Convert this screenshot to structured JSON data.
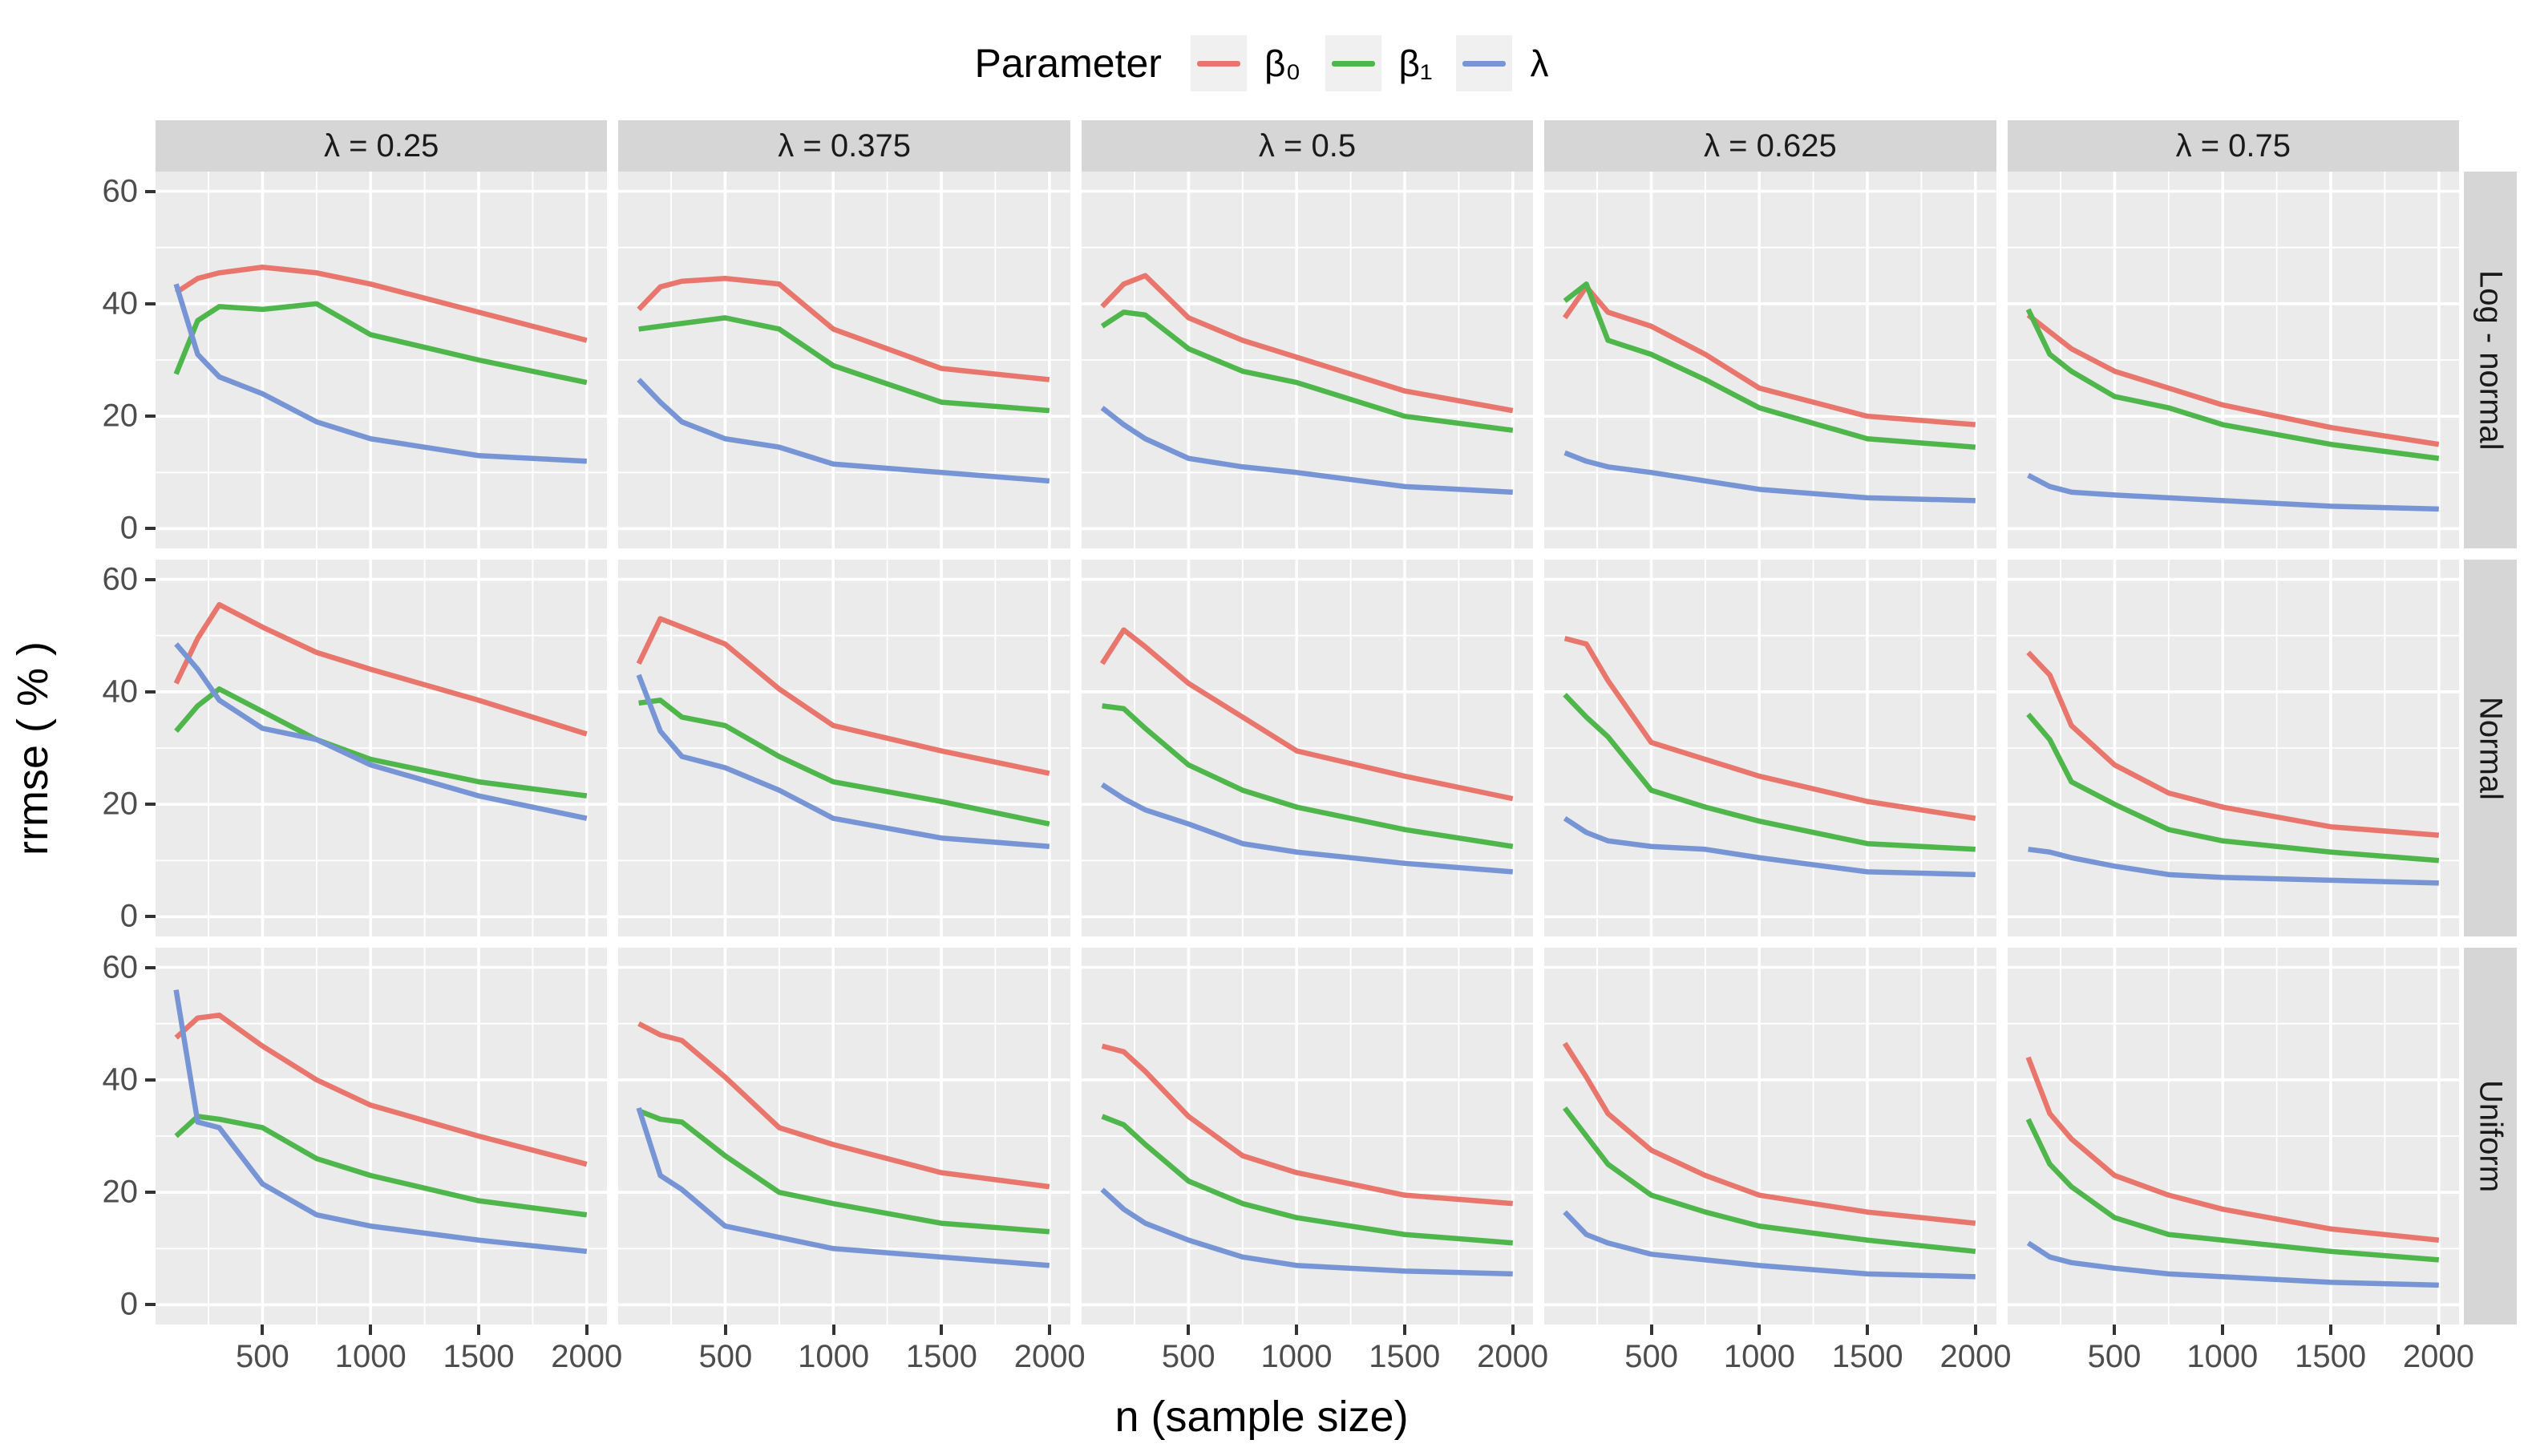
{
  "legend": {
    "title": "Parameter"
  },
  "axes": {
    "x_title": "n (sample size)",
    "y_title": "rrmse ( % )",
    "x_ticks": [
      500,
      1000,
      1500,
      2000
    ],
    "y_ticks": [
      60,
      40,
      20,
      0
    ]
  },
  "facets": {
    "col_labels": [
      "λ = 0.25",
      "λ = 0.375",
      "λ = 0.5",
      "λ = 0.625",
      "λ = 0.75"
    ],
    "row_labels": [
      "Log - normal",
      "Normal",
      "Uniform"
    ]
  },
  "chart_data": {
    "type": "line",
    "x": [
      100,
      200,
      300,
      500,
      750,
      1000,
      1500,
      2000
    ],
    "x_domain": [
      5,
      2095
    ],
    "y_domain": [
      -3.5,
      63.5
    ],
    "x_major_gridlines": [
      500,
      1000,
      1500,
      2000
    ],
    "x_minor_gridlines": [
      250,
      750,
      1250,
      1750
    ],
    "y_major_gridlines": [
      0,
      20,
      40,
      60
    ],
    "y_minor_gridlines": [
      10,
      30,
      50
    ],
    "series": [
      {
        "id": "beta0",
        "label": "β₀",
        "color": "#E8766D"
      },
      {
        "id": "beta1",
        "label": "β₁",
        "color": "#4FB64C"
      },
      {
        "id": "lambda",
        "label": "λ",
        "color": "#7795D5"
      }
    ],
    "rows": [
      {
        "row_label": "Log - normal",
        "panels": [
          {
            "col_label": "λ = 0.25",
            "beta0": [
              42,
              44.5,
              45.5,
              46.5,
              45.5,
              43.5,
              38.5,
              33.5
            ],
            "beta1": [
              27.5,
              37,
              39.5,
              39,
              40,
              34.5,
              30,
              26
            ],
            "lambda": [
              43.5,
              31,
              27,
              24,
              19,
              16,
              13,
              12
            ]
          },
          {
            "col_label": "λ = 0.375",
            "beta0": [
              39,
              43,
              44,
              44.5,
              43.5,
              35.5,
              28.5,
              26.5
            ],
            "beta1": [
              35.5,
              36,
              36.5,
              37.5,
              35.5,
              29,
              22.5,
              21
            ],
            "lambda": [
              26.5,
              22.5,
              19,
              16,
              14.5,
              11.5,
              10,
              8.5
            ]
          },
          {
            "col_label": "λ = 0.5",
            "beta0": [
              39.5,
              43.5,
              45,
              37.5,
              33.5,
              30.5,
              24.5,
              21
            ],
            "beta1": [
              36,
              38.5,
              38,
              32,
              28,
              26,
              20,
              17.5
            ],
            "lambda": [
              21.5,
              18.5,
              16,
              12.5,
              11,
              10,
              7.5,
              6.5
            ]
          },
          {
            "col_label": "λ = 0.625",
            "beta0": [
              37.5,
              43,
              38.5,
              36,
              31,
              25,
              20,
              18.5
            ],
            "beta1": [
              40.5,
              43.5,
              33.5,
              31,
              26.5,
              21.5,
              16,
              14.5
            ],
            "lambda": [
              13.5,
              12,
              11,
              10,
              8.5,
              7,
              5.5,
              5
            ]
          },
          {
            "col_label": "λ = 0.75",
            "beta0": [
              38,
              35,
              32,
              28,
              25,
              22,
              18,
              15
            ],
            "beta1": [
              39,
              31,
              28,
              23.5,
              21.5,
              18.5,
              15,
              12.5
            ],
            "lambda": [
              9.5,
              7.5,
              6.5,
              6,
              5.5,
              5,
              4,
              3.5
            ]
          }
        ]
      },
      {
        "row_label": "Normal",
        "panels": [
          {
            "col_label": "λ = 0.25",
            "beta0": [
              41.5,
              49.5,
              55.5,
              51.5,
              47,
              44,
              38.5,
              32.5
            ],
            "beta1": [
              33,
              37.5,
              40.5,
              36.5,
              31.5,
              28,
              24,
              21.5
            ],
            "lambda": [
              48.5,
              44,
              38.5,
              33.5,
              31.5,
              27,
              21.5,
              17.5
            ]
          },
          {
            "col_label": "λ = 0.375",
            "beta0": [
              45,
              53,
              51.5,
              48.5,
              40.5,
              34,
              29.5,
              25.5
            ],
            "beta1": [
              38,
              38.5,
              35.5,
              34,
              28.5,
              24,
              20.5,
              16.5
            ],
            "lambda": [
              43,
              33,
              28.5,
              26.5,
              22.5,
              17.5,
              14,
              12.5
            ]
          },
          {
            "col_label": "λ = 0.5",
            "beta0": [
              45,
              51,
              48,
              41.5,
              35.5,
              29.5,
              25,
              21
            ],
            "beta1": [
              37.5,
              37,
              33.5,
              27,
              22.5,
              19.5,
              15.5,
              12.5
            ],
            "lambda": [
              23.5,
              21,
              19,
              16.5,
              13,
              11.5,
              9.5,
              8
            ]
          },
          {
            "col_label": "λ = 0.625",
            "beta0": [
              49.5,
              48.5,
              42,
              31,
              28,
              25,
              20.5,
              17.5
            ],
            "beta1": [
              39.5,
              35.5,
              32,
              22.5,
              19.5,
              17,
              13,
              12
            ],
            "lambda": [
              17.5,
              15,
              13.5,
              12.5,
              12,
              10.5,
              8,
              7.5
            ]
          },
          {
            "col_label": "λ = 0.75",
            "beta0": [
              47,
              43,
              34,
              27,
              22,
              19.5,
              16,
              14.5
            ],
            "beta1": [
              36,
              31.5,
              24,
              20,
              15.5,
              13.5,
              11.5,
              10
            ],
            "lambda": [
              12,
              11.5,
              10.5,
              9,
              7.5,
              7,
              6.5,
              6
            ]
          }
        ]
      },
      {
        "row_label": "Uniform",
        "panels": [
          {
            "col_label": "λ = 0.25",
            "beta0": [
              47.5,
              51,
              51.5,
              46,
              40,
              35.5,
              30,
              25
            ],
            "beta1": [
              30,
              33.5,
              33,
              31.5,
              26,
              23,
              18.5,
              16
            ],
            "lambda": [
              56,
              32.5,
              31.5,
              21.5,
              16,
              14,
              11.5,
              9.5
            ]
          },
          {
            "col_label": "λ = 0.375",
            "beta0": [
              50,
              48,
              47,
              40.5,
              31.5,
              28.5,
              23.5,
              21
            ],
            "beta1": [
              34.5,
              33,
              32.5,
              26.5,
              20,
              18,
              14.5,
              13
            ],
            "lambda": [
              35,
              23,
              20.5,
              14,
              12,
              10,
              8.5,
              7
            ]
          },
          {
            "col_label": "λ = 0.5",
            "beta0": [
              46,
              45,
              41.5,
              33.5,
              26.5,
              23.5,
              19.5,
              18
            ],
            "beta1": [
              33.5,
              32,
              28.5,
              22,
              18,
              15.5,
              12.5,
              11
            ],
            "lambda": [
              20.5,
              17,
              14.5,
              11.5,
              8.5,
              7,
              6,
              5.5
            ]
          },
          {
            "col_label": "λ = 0.625",
            "beta0": [
              46.5,
              40.5,
              34,
              27.5,
              23,
              19.5,
              16.5,
              14.5
            ],
            "beta1": [
              35,
              30,
              25,
              19.5,
              16.5,
              14,
              11.5,
              9.5
            ],
            "lambda": [
              16.5,
              12.5,
              11,
              9,
              8,
              7,
              5.5,
              5
            ]
          },
          {
            "col_label": "λ = 0.75",
            "beta0": [
              44,
              34,
              29.5,
              23,
              19.5,
              17,
              13.5,
              11.5
            ],
            "beta1": [
              33,
              25,
              21,
              15.5,
              12.5,
              11.5,
              9.5,
              8
            ],
            "lambda": [
              11,
              8.5,
              7.5,
              6.5,
              5.5,
              5,
              4,
              3.5
            ]
          }
        ]
      }
    ]
  }
}
